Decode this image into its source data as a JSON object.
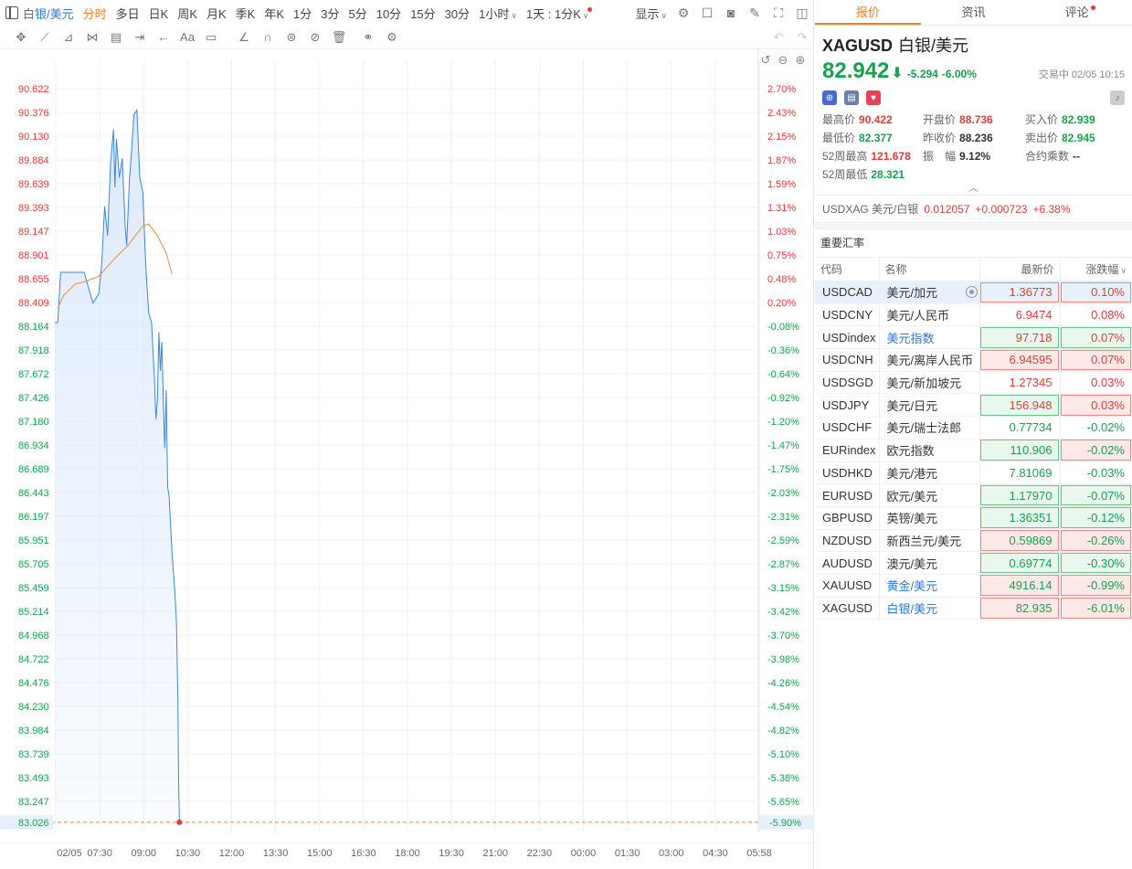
{
  "topbar": {
    "symbol": "白银/美元",
    "periods": [
      "分时",
      "多日",
      "日K",
      "周K",
      "月K",
      "季K",
      "年K",
      "1分",
      "3分",
      "5分",
      "10分",
      "15分",
      "30分"
    ],
    "active_period": "分时",
    "interval_select": "1小时",
    "range_select": "1天 : 1分K",
    "display": "显示"
  },
  "panel": {
    "tabs": [
      {
        "label": "报价",
        "active": true
      },
      {
        "label": "资讯",
        "active": false
      },
      {
        "label": "评论",
        "active": false,
        "dot": true
      }
    ],
    "code": "XAGUSD",
    "name": "白银/美元",
    "price": "82.942",
    "arrow": "⬇",
    "change": "-5.294",
    "change_pct": "-6.00%",
    "status_time": "交易中 02/05 10:15",
    "stats": [
      {
        "label": "最高价",
        "value": "90.422",
        "color": "red"
      },
      {
        "label": "开盘价",
        "value": "88.736",
        "color": "red"
      },
      {
        "label": "买入价",
        "value": "82.939",
        "color": "green"
      },
      {
        "label": "最低价",
        "value": "82.377",
        "color": "green"
      },
      {
        "label": "昨收价",
        "value": "88.236",
        "color": "dark"
      },
      {
        "label": "卖出价",
        "value": "82.945",
        "color": "green"
      },
      {
        "label": "52周最高",
        "value": "121.678",
        "color": "red"
      },
      {
        "label": "振　幅",
        "value": "9.12%",
        "color": "dark"
      },
      {
        "label": "合约乘数",
        "value": "--",
        "color": "dark"
      },
      {
        "label": "52周最低",
        "value": "28.321",
        "color": "green"
      }
    ],
    "usdxag": {
      "label": "USDXAG 美元/白银",
      "price": "0.012057",
      "change": "+0.000723",
      "pct": "+6.38%"
    },
    "fx_title": "重要汇率",
    "fx_headers": {
      "code": "代码",
      "name": "名称",
      "price": "最新价",
      "pct": "涨跌幅"
    },
    "fx_rows": [
      {
        "code": "USDCAD",
        "name": "美元/加元",
        "price": "1.36773",
        "pct": "0.10%",
        "dir": "up",
        "pbox": "red",
        "cbox": "red",
        "sel": true,
        "link": false
      },
      {
        "code": "USDCNY",
        "name": "美元/人民币",
        "price": "6.9474",
        "pct": "0.08%",
        "dir": "up",
        "pbox": "",
        "cbox": "",
        "sel": false,
        "link": false
      },
      {
        "code": "USDindex",
        "name": "美元指数",
        "price": "97.718",
        "pct": "0.07%",
        "dir": "up",
        "pbox": "green",
        "cbox": "green",
        "sel": false,
        "link": true
      },
      {
        "code": "USDCNH",
        "name": "美元/离岸人民币",
        "price": "6.94595",
        "pct": "0.07%",
        "dir": "up",
        "pbox": "red",
        "cbox": "red",
        "sel": false,
        "link": false
      },
      {
        "code": "USDSGD",
        "name": "美元/新加坡元",
        "price": "1.27345",
        "pct": "0.03%",
        "dir": "up",
        "pbox": "",
        "cbox": "",
        "sel": false,
        "link": false
      },
      {
        "code": "USDJPY",
        "name": "美元/日元",
        "price": "156.948",
        "pct": "0.03%",
        "dir": "up",
        "pbox": "green",
        "cbox": "red",
        "sel": false,
        "link": false
      },
      {
        "code": "USDCHF",
        "name": "美元/瑞士法郎",
        "price": "0.77734",
        "pct": "-0.02%",
        "dir": "down",
        "pbox": "",
        "cbox": "",
        "sel": false,
        "link": false
      },
      {
        "code": "EURindex",
        "name": "欧元指数",
        "price": "110.906",
        "pct": "-0.02%",
        "dir": "down",
        "pbox": "green",
        "cbox": "red",
        "sel": false,
        "link": false
      },
      {
        "code": "USDHKD",
        "name": "美元/港元",
        "price": "7.81069",
        "pct": "-0.03%",
        "dir": "down",
        "pbox": "",
        "cbox": "",
        "sel": false,
        "link": false
      },
      {
        "code": "EURUSD",
        "name": "欧元/美元",
        "price": "1.17970",
        "pct": "-0.07%",
        "dir": "down",
        "pbox": "green",
        "cbox": "green",
        "sel": false,
        "link": false
      },
      {
        "code": "GBPUSD",
        "name": "英镑/美元",
        "price": "1.36351",
        "pct": "-0.12%",
        "dir": "down",
        "pbox": "green",
        "cbox": "green",
        "sel": false,
        "link": false
      },
      {
        "code": "NZDUSD",
        "name": "新西兰元/美元",
        "price": "0.59869",
        "pct": "-0.26%",
        "dir": "down",
        "pbox": "red",
        "cbox": "red",
        "sel": false,
        "link": false
      },
      {
        "code": "AUDUSD",
        "name": "澳元/美元",
        "price": "0.69774",
        "pct": "-0.30%",
        "dir": "down",
        "pbox": "green",
        "cbox": "green",
        "sel": false,
        "link": false
      },
      {
        "code": "XAUUSD",
        "name": "黄金/美元",
        "price": "4916.14",
        "pct": "-0.99%",
        "dir": "down",
        "pbox": "red",
        "cbox": "red",
        "sel": false,
        "link": true
      },
      {
        "code": "XAGUSD",
        "name": "白银/美元",
        "price": "82.935",
        "pct": "-6.01%",
        "dir": "down",
        "pbox": "red",
        "cbox": "red",
        "sel": false,
        "link": true
      }
    ]
  },
  "chart_data": {
    "type": "line",
    "title": "",
    "prev_close": 88.236,
    "last_price": "83.026",
    "last_pct": "-5.90%",
    "y_ticks": [
      "90.622",
      "90.376",
      "90.130",
      "89.884",
      "89.639",
      "89.393",
      "89.147",
      "88.901",
      "88.655",
      "88.409",
      "88.164",
      "87.918",
      "87.672",
      "87.426",
      "87.180",
      "86.934",
      "86.689",
      "86.443",
      "86.197",
      "85.951",
      "85.705",
      "85.459",
      "85.214",
      "84.968",
      "84.722",
      "84.476",
      "84.230",
      "83.984",
      "83.739",
      "83.493",
      "83.247"
    ],
    "pct_ticks": [
      "2.70%",
      "2.43%",
      "2.15%",
      "1.87%",
      "1.59%",
      "1.31%",
      "1.03%",
      "0.75%",
      "0.48%",
      "0.20%",
      "-0.08%",
      "-0.36%",
      "-0.64%",
      "-0.92%",
      "-1.20%",
      "-1.47%",
      "-1.75%",
      "-2.03%",
      "-2.31%",
      "-2.59%",
      "-2.87%",
      "-3.15%",
      "-3.42%",
      "-3.70%",
      "-3.98%",
      "-4.26%",
      "-4.54%",
      "-4.82%",
      "-5.10%",
      "-5.38%",
      "-5.65%"
    ],
    "x_ticks": [
      "02/05",
      "07:30",
      "09:00",
      "10:30",
      "12:00",
      "13:30",
      "15:00",
      "16:30",
      "18:00",
      "19:30",
      "21:00",
      "22:30",
      "00:00",
      "01:30",
      "03:00",
      "04:30",
      "05:58"
    ],
    "x_start_hour": 6,
    "x_end_hour": 30,
    "series": [
      {
        "x": [
          6.0,
          6.1,
          6.2,
          6.3,
          6.5,
          7.0,
          7.3,
          7.5,
          7.6,
          7.7,
          7.8,
          7.9,
          8.0,
          8.05,
          8.1,
          8.2,
          8.3,
          8.4,
          8.45,
          8.55,
          8.6,
          8.7,
          8.8,
          8.9,
          9.0,
          9.1,
          9.2,
          9.3,
          9.4,
          9.45,
          9.5,
          9.55,
          9.6,
          9.65,
          9.7,
          9.75,
          9.8,
          9.85,
          9.9,
          10.0,
          10.1,
          10.15,
          10.2,
          10.22,
          10.25
        ],
        "y": [
          88.2,
          88.2,
          88.72,
          88.72,
          88.72,
          88.72,
          88.4,
          88.5,
          88.8,
          89.4,
          89.1,
          89.85,
          90.2,
          89.6,
          90.1,
          89.7,
          89.9,
          89.2,
          89.0,
          89.7,
          89.9,
          90.35,
          90.4,
          89.7,
          89.55,
          88.8,
          88.3,
          88.2,
          87.6,
          87.2,
          87.4,
          88.1,
          87.7,
          88.0,
          87.4,
          86.9,
          87.5,
          86.5,
          86.4,
          85.8,
          85.4,
          85.1,
          84.3,
          83.5,
          83.03
        ]
      },
      {
        "x": [
          6.1,
          6.3,
          6.7,
          7.0,
          7.5,
          8.0,
          8.5,
          9.0,
          9.2,
          9.5,
          9.8,
          10.0
        ],
        "y": [
          88.35,
          88.48,
          88.6,
          88.62,
          88.68,
          88.85,
          89.0,
          89.2,
          89.22,
          89.1,
          88.92,
          88.7
        ]
      }
    ],
    "colors": {
      "price_line": "#3a86e0",
      "avg_line": "#f08a3c",
      "fill": "#dbe9fc",
      "last_line": "#f08a3c",
      "last_dot": "#e23c39",
      "up": "#e23c39",
      "down": "#17a34a"
    }
  }
}
